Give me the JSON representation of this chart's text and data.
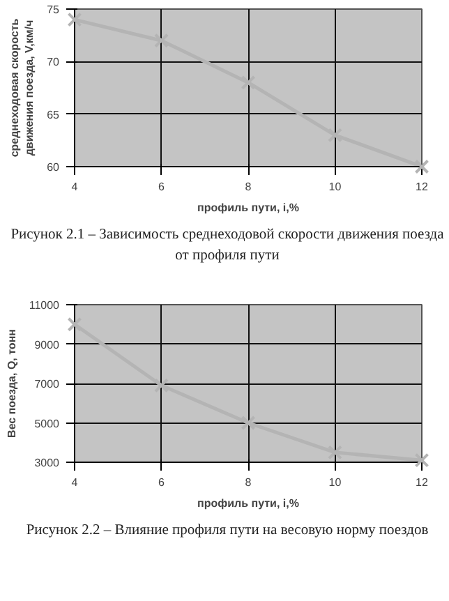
{
  "chart_data": [
    {
      "type": "line",
      "x": [
        4,
        6,
        8,
        10,
        12
      ],
      "values": [
        74,
        72,
        68,
        63,
        60
      ],
      "color": "#b4b4b4",
      "xlim": [
        4,
        12
      ],
      "xticks": [
        4,
        6,
        8,
        10,
        12
      ],
      "ylim": [
        60,
        75
      ],
      "yticks": [
        60,
        65,
        70,
        75
      ],
      "xlabel": "профиль пути, i,%",
      "ylabel": "среднеходовая скорость\nдвижения поезда, V,км/ч",
      "grid": true,
      "marker": "cross",
      "line_style": "solid",
      "annotations": [
        "Рисунок 2.1 – Зависимость среднеходовой скорости движения поезда от профиля пути"
      ]
    },
    {
      "type": "line",
      "x": [
        4,
        6,
        8,
        10,
        12
      ],
      "values": [
        10000,
        6900,
        5000,
        3500,
        3100
      ],
      "color": "#b4b4b4",
      "xlim": [
        4,
        12
      ],
      "xticks": [
        4,
        6,
        8,
        10,
        12
      ],
      "ylim": [
        3000,
        11000
      ],
      "yticks": [
        3000,
        5000,
        7000,
        9000,
        11000
      ],
      "xlabel": "профиль пути, i,%",
      "ylabel": "Вес поезда, Q, тонн",
      "grid": true,
      "marker": "cross",
      "line_style": "solid",
      "annotations": [
        "Рисунок 2.2 – Влияние профиля пути на весовую норму поездов"
      ]
    }
  ]
}
